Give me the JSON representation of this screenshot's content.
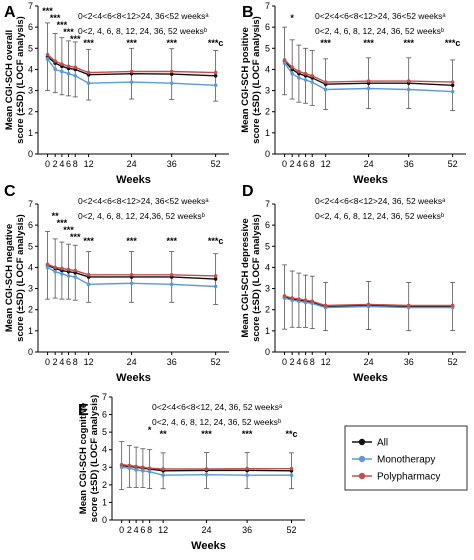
{
  "colors": {
    "all": "#111111",
    "monotherapy": "#5b9bd5",
    "polypharmacy": "#c0504d",
    "axis": "#000000",
    "errorbar": "#555555"
  },
  "legend": {
    "placement": "right of panel E",
    "items": [
      "All",
      "Monotherapy",
      "Polypharmacy"
    ]
  },
  "chart_data": [
    {
      "panel": "A",
      "type": "line",
      "ylabel_lines": [
        "Mean CGI-SCH overall",
        "score (±SD) (LOCF analysis)"
      ],
      "xlabel": "Weeks",
      "ylim": [
        0,
        7
      ],
      "yticks": [
        "0",
        "1",
        "2",
        "3",
        "4",
        "5",
        "6",
        "7"
      ],
      "xticks": [
        "0",
        "2",
        "4",
        "6",
        "8",
        "12",
        "24",
        "36",
        "52"
      ],
      "x": [
        0,
        2,
        4,
        6,
        8,
        12,
        24,
        36,
        52
      ],
      "note_lines": [
        "0<2<4<6<8<12>24, 36<52 weeksᵃ",
        "0<2, 4, 6, 8, 12, 24, 36, 52 weeksᵇ"
      ],
      "sig_labels": [
        "***",
        "***",
        "***",
        "***",
        "***",
        "***",
        "***",
        "***",
        "***c"
      ],
      "series": [
        {
          "name": "All",
          "values": [
            4.6,
            4.3,
            4.15,
            4.05,
            4.0,
            3.75,
            3.8,
            3.78,
            3.7
          ]
        },
        {
          "name": "Monotherapy",
          "values": [
            4.5,
            4.0,
            3.9,
            3.8,
            3.7,
            3.35,
            3.4,
            3.35,
            3.25
          ]
        },
        {
          "name": "Polypharmacy",
          "values": [
            4.7,
            4.4,
            4.25,
            4.15,
            4.1,
            3.85,
            3.9,
            3.9,
            3.85
          ]
        }
      ]
    },
    {
      "panel": "B",
      "type": "line",
      "ylabel_lines": [
        "Mean CGI-SCH positive",
        "score (±SD) (LOCF analysis)"
      ],
      "xlabel": "Weeks",
      "ylim": [
        0,
        7
      ],
      "yticks": [
        "0",
        "1",
        "2",
        "3",
        "4",
        "5",
        "6",
        "7"
      ],
      "xticks": [
        "0",
        "2",
        "4",
        "6",
        "8",
        "12",
        "24",
        "36",
        "52"
      ],
      "x": [
        0,
        2,
        4,
        6,
        8,
        12,
        24,
        36,
        52
      ],
      "note_lines": [
        "0<2<4<6<8<12>24, 36<52 weeksᵃ",
        "0<2, 4, 6, 8, 12, 24, 36, 52 weeksᵇ"
      ],
      "sig_labels": [
        "",
        "*",
        "",
        "",
        "",
        "***",
        "***",
        "***",
        "***c"
      ],
      "series": [
        {
          "name": "All",
          "values": [
            4.4,
            4.0,
            3.8,
            3.7,
            3.6,
            3.3,
            3.35,
            3.35,
            3.25
          ]
        },
        {
          "name": "Monotherapy",
          "values": [
            4.3,
            3.8,
            3.6,
            3.5,
            3.4,
            3.05,
            3.1,
            3.05,
            2.95
          ]
        },
        {
          "name": "Polypharmacy",
          "values": [
            4.45,
            4.1,
            3.9,
            3.8,
            3.7,
            3.4,
            3.45,
            3.45,
            3.4
          ]
        }
      ]
    },
    {
      "panel": "C",
      "type": "line",
      "ylabel_lines": [
        "Mean CGI-SCH negative",
        "score (±SD) (LOCF analysis)"
      ],
      "xlabel": "Weeks",
      "ylim": [
        0,
        7
      ],
      "yticks": [
        "0",
        "1",
        "2",
        "3",
        "4",
        "5",
        "6",
        "7"
      ],
      "xticks": [
        "0",
        "2",
        "4",
        "6",
        "8",
        "12",
        "24",
        "36",
        "52"
      ],
      "x": [
        0,
        2,
        4,
        6,
        8,
        12,
        24,
        36,
        52
      ],
      "note_lines": [
        "0<2<4<6<8<12>24, 36<52 weeksᵃ",
        "0<2, 4, 6, 8, 12, 24,36, 52 weeksᵇ"
      ],
      "sig_labels": [
        "",
        "**",
        "***",
        "***",
        "***",
        "***",
        "***",
        "***",
        "***c"
      ],
      "series": [
        {
          "name": "All",
          "values": [
            4.1,
            3.95,
            3.85,
            3.8,
            3.75,
            3.55,
            3.55,
            3.55,
            3.45
          ]
        },
        {
          "name": "Monotherapy",
          "values": [
            4.0,
            3.8,
            3.7,
            3.6,
            3.55,
            3.2,
            3.25,
            3.2,
            3.1
          ]
        },
        {
          "name": "Polypharmacy",
          "values": [
            4.15,
            4.0,
            3.95,
            3.9,
            3.85,
            3.65,
            3.65,
            3.65,
            3.6
          ]
        }
      ]
    },
    {
      "panel": "D",
      "type": "line",
      "ylabel_lines": [
        "Mean CGI-SCH depressive",
        "score (±SD) (LOCF analysis)"
      ],
      "xlabel": "Weeks",
      "ylim": [
        0,
        7
      ],
      "yticks": [
        "0",
        "1",
        "2",
        "3",
        "4",
        "5",
        "6",
        "7"
      ],
      "xticks": [
        "0",
        "2",
        "4",
        "6",
        "8",
        "12",
        "24",
        "36",
        "52"
      ],
      "x": [
        0,
        2,
        4,
        6,
        8,
        12,
        24,
        36,
        52
      ],
      "note_lines": [
        "0<2<4<6<8<12>24, 36, 52 weeksᵃ",
        "0<2, 4, 6, 8, 12, 24, 36, 52 weeksᵇ"
      ],
      "sig_labels": [
        "",
        "",
        "",
        "",
        "",
        "",
        "",
        "",
        ""
      ],
      "series": [
        {
          "name": "All",
          "values": [
            2.6,
            2.5,
            2.45,
            2.4,
            2.35,
            2.15,
            2.2,
            2.15,
            2.15
          ]
        },
        {
          "name": "Monotherapy",
          "values": [
            2.55,
            2.45,
            2.4,
            2.35,
            2.3,
            2.1,
            2.15,
            2.1,
            2.1
          ]
        },
        {
          "name": "Polypharmacy",
          "values": [
            2.65,
            2.55,
            2.5,
            2.45,
            2.4,
            2.2,
            2.25,
            2.2,
            2.2
          ]
        }
      ]
    },
    {
      "panel": "E",
      "type": "line",
      "ylabel_lines": [
        "Mean CGI-SCH cognitive",
        "score (±SD) (LOCF analysis)"
      ],
      "xlabel": "Weeks",
      "ylim": [
        0,
        7
      ],
      "yticks": [
        "0",
        "1",
        "2",
        "3",
        "4",
        "5",
        "6",
        "7"
      ],
      "xticks": [
        "0",
        "2",
        "4",
        "6",
        "8",
        "12",
        "24",
        "36",
        "52"
      ],
      "x": [
        0,
        2,
        4,
        6,
        8,
        12,
        24,
        36,
        52
      ],
      "note_lines": [
        "0<2<4<6<8<12, 24, 36, 52 weeksᵃ",
        "0<2, 4, 6, 8, 12, 24, 36, 52 weeksᵇ"
      ],
      "sig_labels": [
        "",
        "",
        "",
        "",
        "*",
        "**",
        "***",
        "***",
        "**c"
      ],
      "series": [
        {
          "name": "All",
          "values": [
            3.1,
            3.05,
            3.0,
            2.95,
            2.9,
            2.8,
            2.82,
            2.82,
            2.8
          ]
        },
        {
          "name": "Monotherapy",
          "values": [
            3.0,
            2.95,
            2.85,
            2.8,
            2.75,
            2.55,
            2.58,
            2.55,
            2.55
          ]
        },
        {
          "name": "Polypharmacy",
          "values": [
            3.15,
            3.1,
            3.05,
            3.0,
            2.95,
            2.9,
            2.9,
            2.92,
            2.92
          ]
        }
      ]
    }
  ]
}
